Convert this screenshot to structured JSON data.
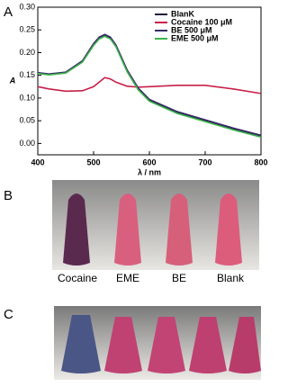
{
  "chart_data": {
    "type": "line",
    "x_label": "λ / nm",
    "y_label": "A",
    "x": [
      400,
      420,
      450,
      480,
      500,
      510,
      520,
      530,
      540,
      560,
      580,
      600,
      650,
      700,
      750,
      800
    ],
    "series": [
      {
        "name": "BlanK",
        "color": "#1a1a3a",
        "values": [
          0.155,
          0.152,
          0.156,
          0.18,
          0.218,
          0.232,
          0.238,
          0.232,
          0.215,
          0.16,
          0.12,
          0.095,
          0.068,
          0.05,
          0.032,
          0.016
        ]
      },
      {
        "name": "Cocaine 100 μM",
        "color": "#c8204a",
        "values": [
          0.125,
          0.12,
          0.115,
          0.116,
          0.125,
          0.135,
          0.145,
          0.142,
          0.135,
          0.126,
          0.124,
          0.125,
          0.128,
          0.128,
          0.12,
          0.11
        ]
      },
      {
        "name": "BE  500 μM",
        "color": "#3a2a6a",
        "values": [
          0.156,
          0.153,
          0.157,
          0.182,
          0.22,
          0.234,
          0.24,
          0.234,
          0.217,
          0.162,
          0.122,
          0.097,
          0.07,
          0.052,
          0.034,
          0.018
        ]
      },
      {
        "name": "EME 500 μM",
        "color": "#3cb44a",
        "values": [
          0.154,
          0.151,
          0.155,
          0.179,
          0.216,
          0.23,
          0.236,
          0.23,
          0.213,
          0.158,
          0.118,
          0.093,
          0.066,
          0.048,
          0.03,
          0.014
        ]
      }
    ],
    "xlim": [
      400,
      800
    ],
    "xticks": [
      400,
      500,
      600,
      700,
      800
    ],
    "ylim": [
      -0.025,
      0.3
    ],
    "yticks": [
      {
        "value": 0,
        "label": "0.00"
      },
      {
        "value": 0.05,
        "label": "0.05"
      },
      {
        "value": 0.1,
        "label": "0.10"
      },
      {
        "value": 0.15,
        "label": "0.15"
      },
      {
        "value": 0.2,
        "label": "0.20"
      },
      {
        "value": 0.25,
        "label": "0.25"
      },
      {
        "value": 0.3,
        "label": "0.30"
      }
    ],
    "legend": "upper right"
  },
  "panels": [
    "A",
    "B",
    "C"
  ],
  "tube_labels": [
    "Cocaine",
    "EME",
    "BE",
    "Blank"
  ]
}
